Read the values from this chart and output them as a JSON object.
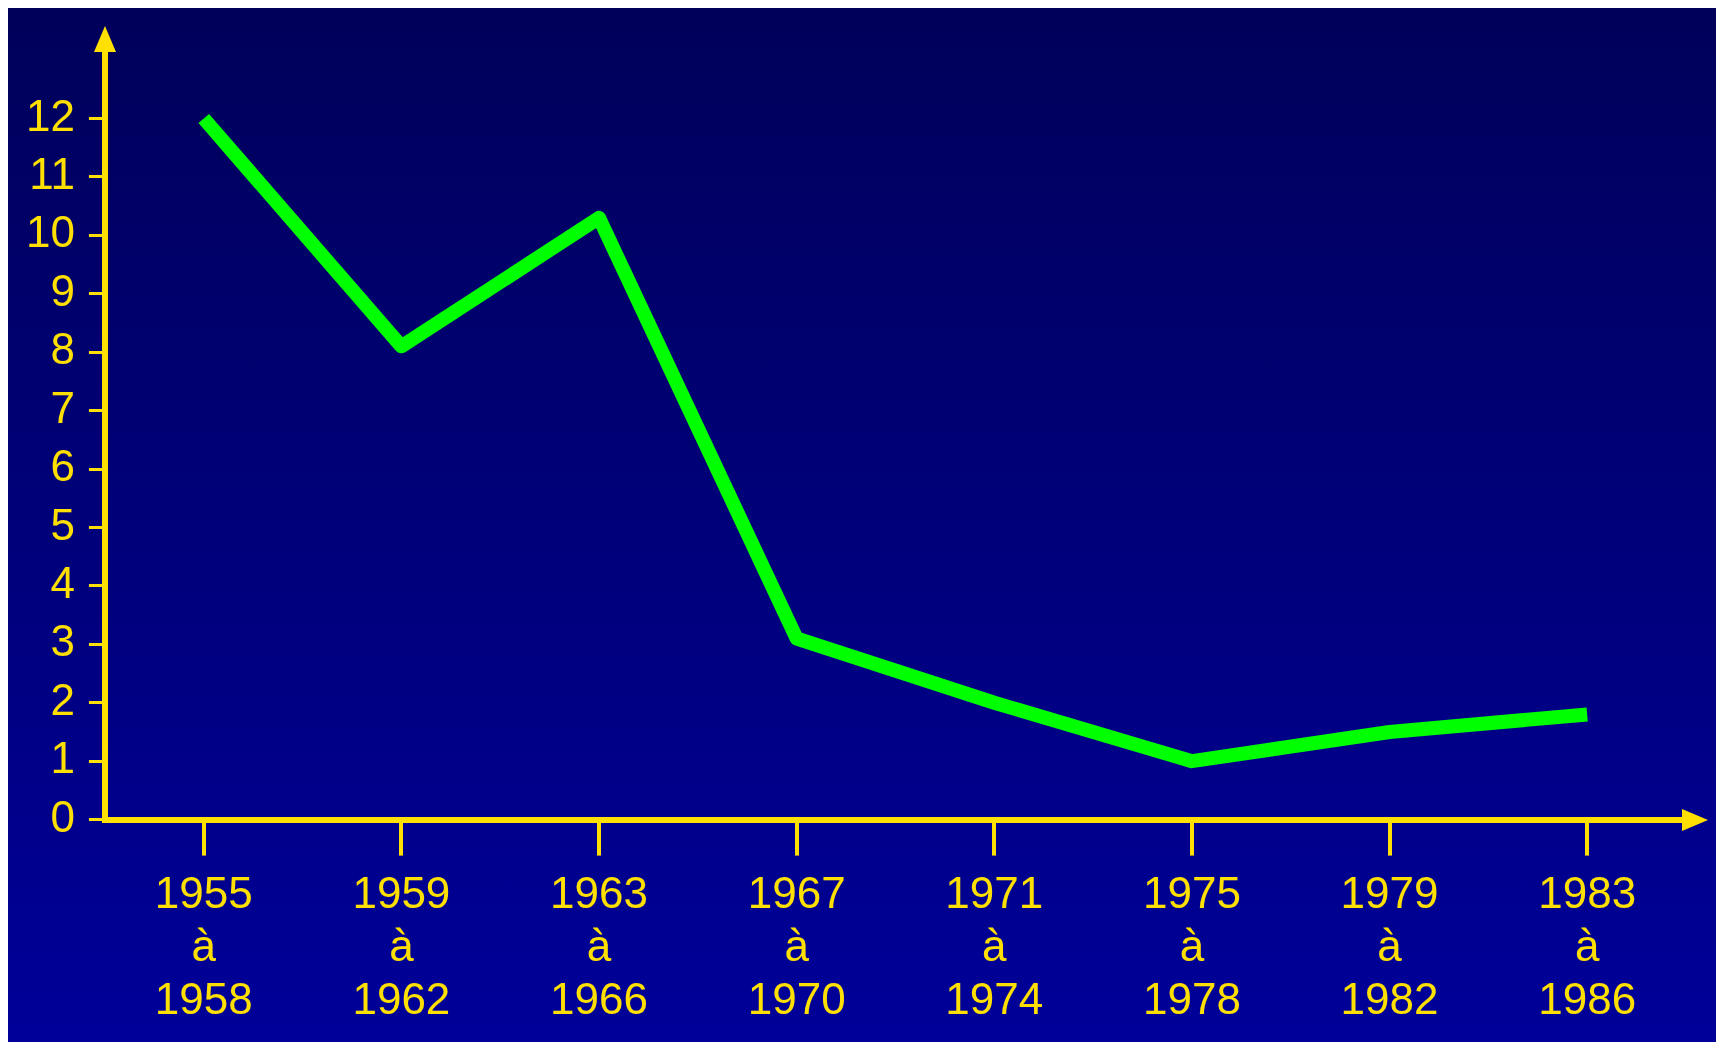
{
  "chart_data": {
    "type": "line",
    "categories": [
      "1955\nà\n1958",
      "1959\nà\n1962",
      "1963\nà\n1966",
      "1967\nà\n1970",
      "1971\nà\n1974",
      "1975\nà\n1978",
      "1979\nà\n1982",
      "1983\nà\n1986"
    ],
    "series": [
      {
        "color": "#00ff00",
        "values": [
          12,
          8.1,
          10.3,
          3.1,
          2.0,
          1.0,
          1.5,
          1.8
        ]
      }
    ],
    "ylim": [
      0,
      13.2
    ],
    "yticks": [
      0,
      1,
      2,
      3,
      4,
      5,
      6,
      7,
      8,
      9,
      10,
      11,
      12
    ],
    "grid": false,
    "legend": false,
    "marker": "none",
    "line_style": "solid"
  }
}
